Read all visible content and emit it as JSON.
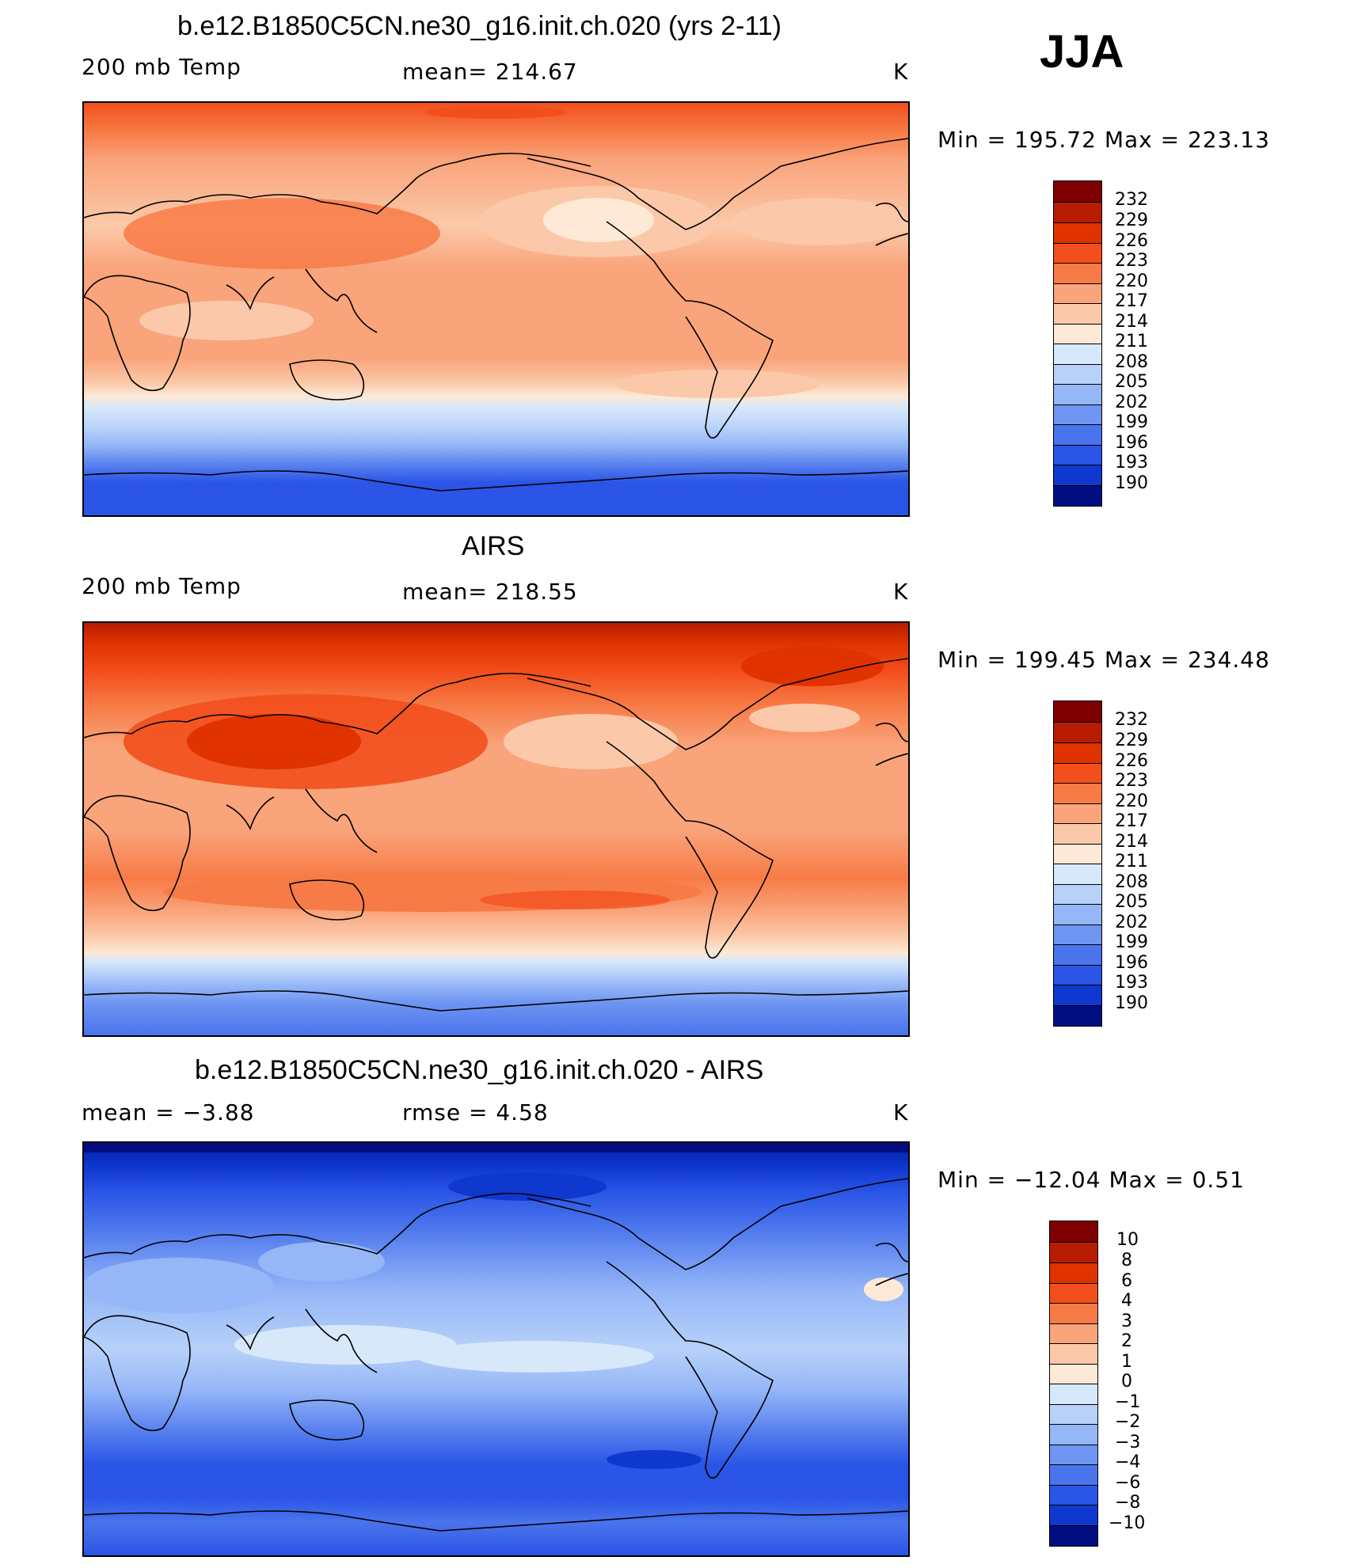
{
  "season": "JJA",
  "panels": [
    {
      "title": "b.e12.B1850C5CN.ne30_g16.init.ch.020 (yrs 2-11)",
      "left_label": "200 mb Temp",
      "center_label": "mean=  214.67",
      "unit": "K",
      "minmax": "Min  =  195.72  Max  =  223.13",
      "ticks": [
        "232",
        "229",
        "226",
        "223",
        "220",
        "217",
        "214",
        "211",
        "208",
        "205",
        "202",
        "199",
        "196",
        "193",
        "190"
      ]
    },
    {
      "title": "AIRS",
      "left_label": "200 mb Temp",
      "center_label": "mean=  218.55",
      "unit": "K",
      "minmax": "Min  =  199.45  Max  =  234.48",
      "ticks": [
        "232",
        "229",
        "226",
        "223",
        "220",
        "217",
        "214",
        "211",
        "208",
        "205",
        "202",
        "199",
        "196",
        "193",
        "190"
      ]
    },
    {
      "title": "b.e12.B1850C5CN.ne30_g16.init.ch.020 - AIRS",
      "left_label": "mean  =    −3.88",
      "center_label": "rmse  =     4.58",
      "unit": "K",
      "minmax": "Min  =  −12.04  Max  =      0.51",
      "ticks": [
        "10",
        "8",
        "6",
        "4",
        "3",
        "2",
        "1",
        "0",
        "−1",
        "−2",
        "−3",
        "−4",
        "−6",
        "−8",
        "−10"
      ]
    }
  ],
  "colors": {
    "scale": [
      "#7f0000",
      "#b81c00",
      "#e03300",
      "#f24f1c",
      "#f77b46",
      "#f9a47b",
      "#fbc9a9",
      "#fde9d6",
      "#d7e8fa",
      "#b7d1f9",
      "#95b6f7",
      "#6f95f2",
      "#4a74ec",
      "#2a55e6",
      "#0f38cf",
      "#0020a8",
      "#000e82"
    ]
  }
}
